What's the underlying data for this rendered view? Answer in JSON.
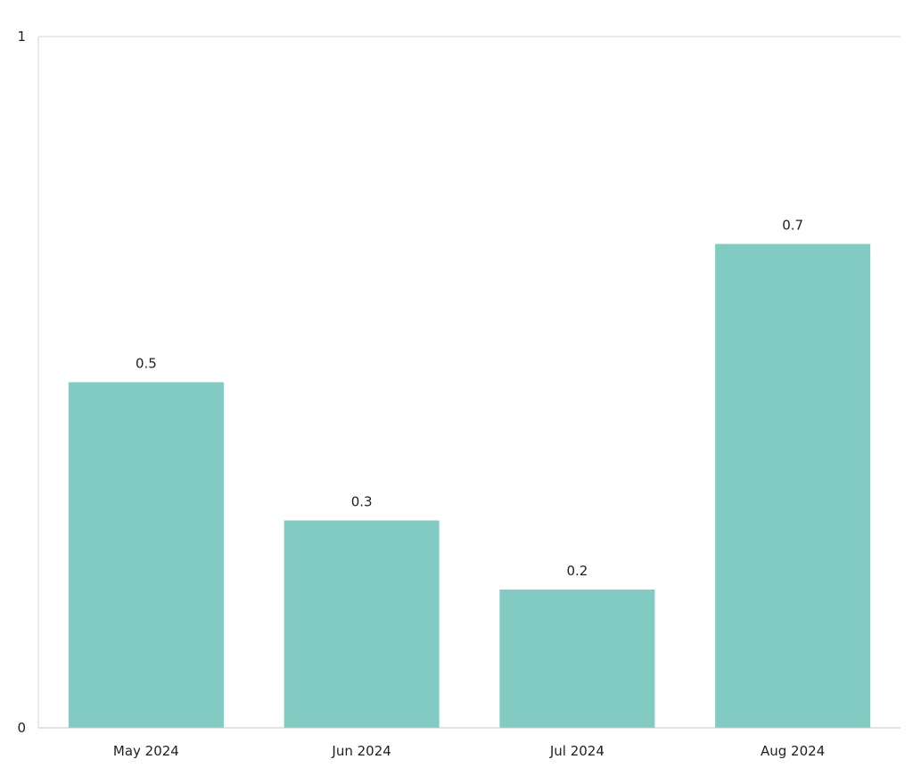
{
  "chart_data": {
    "type": "bar",
    "title": "",
    "xlabel": "",
    "ylabel": "",
    "categories": [
      "May 2024",
      "Jun 2024",
      "Jul 2024",
      "Aug 2024"
    ],
    "values": [
      0.5,
      0.3,
      0.2,
      0.7
    ],
    "data_labels": [
      "0.5",
      "0.3",
      "0.2",
      "0.7"
    ],
    "ylim": [
      0,
      1
    ],
    "y_ticks": [
      0,
      1
    ],
    "y_tick_labels": [
      "0",
      "1"
    ],
    "grid": true,
    "legend": "none",
    "bar_color": "#81cbc3"
  }
}
